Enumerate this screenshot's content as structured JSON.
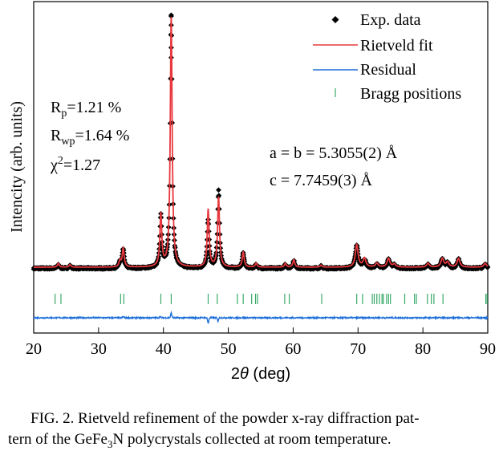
{
  "chart_data": {
    "type": "line",
    "title": "",
    "xlabel": "2θ (deg)",
    "xlabel_parts": {
      "prefix": "2",
      "theta": "θ",
      "suffix": " (deg)"
    },
    "ylabel": "Intencity (arb. units)",
    "xlim": [
      20,
      90
    ],
    "xticks": [
      20,
      30,
      40,
      50,
      60,
      70,
      80,
      90
    ],
    "xtick_labels": [
      "20",
      "30",
      "40",
      "50",
      "60",
      "70",
      "80",
      "90"
    ],
    "grid": false,
    "legend_position": "top-right",
    "legend": [
      {
        "label": "Exp. data",
        "marker": "diamond",
        "color": "#000000"
      },
      {
        "label": "Rietveld fit",
        "marker": "line",
        "color": "#e8383d"
      },
      {
        "label": "Residual",
        "marker": "line",
        "color": "#1e6fd9"
      },
      {
        "label": "Bragg positions",
        "marker": "tick",
        "color": "#3aaa6a"
      }
    ],
    "fit_stats": {
      "rp_label": "R",
      "rp_sub": "p",
      "rp_value": "=1.21 %",
      "rwp_label": "R",
      "rwp_sub": "wp",
      "rwp_value": "=1.64 %",
      "chi_label": "χ",
      "chi_sup": "2",
      "chi_value": "=1.27"
    },
    "lattice": {
      "ab": "a = b = 5.3055(2) Å",
      "c": "c = 7.7459(3) Å"
    },
    "peaks": {
      "description": "relative intensity (arb. units, max = 100) above background",
      "position_2theta": [
        23.8,
        25.6,
        33.3,
        33.8,
        39.6,
        41.2,
        46.9,
        48.5,
        52.3,
        54.3,
        58.8,
        60.1,
        64.3,
        69.8,
        71.0,
        72.9,
        74.7,
        75.6,
        80.8,
        83.0,
        83.8,
        85.5,
        89.6
      ],
      "exp_intensity": [
        1.5,
        1.0,
        2.5,
        7.5,
        21,
        101,
        19,
        31,
        6,
        1.5,
        1.5,
        3,
        0.8,
        9,
        3.5,
        1.5,
        3.5,
        1.2,
        1.5,
        3.5,
        2,
        3.5,
        1.5
      ],
      "fit_intensity": [
        1.5,
        1.0,
        2.5,
        7.5,
        21,
        100,
        23,
        28,
        6,
        1.5,
        1.5,
        3,
        0.8,
        9,
        3.5,
        1.5,
        3.5,
        1.2,
        1.5,
        3.5,
        2,
        3.5,
        1.5
      ]
    },
    "bragg_positions": [
      23.3,
      24.2,
      33.4,
      33.9,
      39.6,
      41.2,
      46.9,
      48.3,
      51.4,
      52.3,
      53.6,
      54.2,
      54.5,
      58.7,
      59.4,
      64.4,
      69.8,
      70.7,
      72.2,
      72.5,
      72.9,
      73.3,
      73.7,
      73.9,
      74.4,
      74.7,
      75.0,
      77.2,
      78.7,
      79.0,
      80.7,
      81.3,
      81.7,
      83.1,
      89.7,
      89.9
    ],
    "residual_features": [
      {
        "x": 41.2,
        "amplitude": 6
      },
      {
        "x": 46.9,
        "amplitude": -7
      },
      {
        "x": 48.4,
        "amplitude": -4
      },
      {
        "x": 33.8,
        "amplitude": 1.5
      },
      {
        "x": 39.5,
        "amplitude": 1.5
      }
    ]
  },
  "caption": {
    "line1": "FIG. 2.  Rietveld refinement of the powder x-ray diffraction pat-",
    "line2_a": "tern of the GeFe",
    "line2_sub": "3",
    "line2_b": "N polycrystals collected at room temperature."
  }
}
